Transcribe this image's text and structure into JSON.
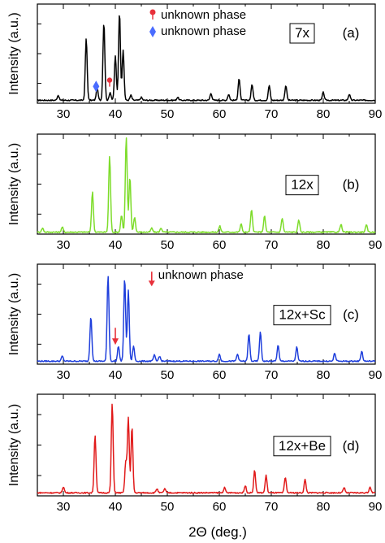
{
  "chart_data": {
    "type": "line",
    "xlabel": "2Θ (deg.)",
    "ylabel": "Intensity (a.u.)",
    "xlim": [
      25,
      90
    ],
    "xticks": [
      "30",
      "40",
      "50",
      "60",
      "70",
      "80",
      "90"
    ],
    "panels": [
      {
        "id": "a",
        "tag": "(a)",
        "sample_label": "7x",
        "color": "#000000",
        "legend": [
          {
            "marker": "circle-pin",
            "color": "#e8303a",
            "label": "unknown phase"
          },
          {
            "marker": "diamond",
            "color": "#4a6cff",
            "label": "unknown phase"
          }
        ],
        "markers": [
          {
            "type": "diamond",
            "color": "#4a6cff",
            "x": 36.3,
            "y": 0.17
          },
          {
            "type": "circle-pin",
            "color": "#e8303a",
            "x": 38.9,
            "y": 0.2
          }
        ],
        "arrow_note": null,
        "arrows": [],
        "baseline": 0.03,
        "peaks": [
          {
            "x": 29.0,
            "h": 0.05
          },
          {
            "x": 34.4,
            "h": 0.62
          },
          {
            "x": 36.5,
            "h": 0.12
          },
          {
            "x": 37.8,
            "h": 0.79
          },
          {
            "x": 39.0,
            "h": 0.08
          },
          {
            "x": 40.0,
            "h": 0.45
          },
          {
            "x": 40.8,
            "h": 0.89
          },
          {
            "x": 41.5,
            "h": 0.5
          },
          {
            "x": 43.0,
            "h": 0.05
          },
          {
            "x": 45.0,
            "h": 0.03
          },
          {
            "x": 52.0,
            "h": 0.03
          },
          {
            "x": 58.4,
            "h": 0.07
          },
          {
            "x": 61.8,
            "h": 0.06
          },
          {
            "x": 63.8,
            "h": 0.22
          },
          {
            "x": 66.3,
            "h": 0.16
          },
          {
            "x": 69.6,
            "h": 0.15
          },
          {
            "x": 72.8,
            "h": 0.15
          },
          {
            "x": 80.0,
            "h": 0.08
          },
          {
            "x": 85.0,
            "h": 0.06
          }
        ]
      },
      {
        "id": "b",
        "tag": "(b)",
        "sample_label": "12x",
        "color": "#7ddc2a",
        "legend": [],
        "markers": [],
        "arrow_note": null,
        "arrows": [],
        "baseline": 0.02,
        "peaks": [
          {
            "x": 26.0,
            "h": 0.04
          },
          {
            "x": 29.8,
            "h": 0.05
          },
          {
            "x": 35.6,
            "h": 0.4
          },
          {
            "x": 38.9,
            "h": 0.76
          },
          {
            "x": 41.2,
            "h": 0.17
          },
          {
            "x": 42.1,
            "h": 0.95
          },
          {
            "x": 42.8,
            "h": 0.55
          },
          {
            "x": 43.7,
            "h": 0.15
          },
          {
            "x": 47.0,
            "h": 0.04
          },
          {
            "x": 48.8,
            "h": 0.04
          },
          {
            "x": 60.1,
            "h": 0.06
          },
          {
            "x": 64.2,
            "h": 0.08
          },
          {
            "x": 66.2,
            "h": 0.22
          },
          {
            "x": 68.7,
            "h": 0.16
          },
          {
            "x": 72.1,
            "h": 0.14
          },
          {
            "x": 75.3,
            "h": 0.12
          },
          {
            "x": 83.4,
            "h": 0.08
          },
          {
            "x": 88.3,
            "h": 0.07
          }
        ]
      },
      {
        "id": "c",
        "tag": "(c)",
        "sample_label": "12x+Sc",
        "color": "#1f3fdc",
        "legend": [],
        "markers": [],
        "arrow_note": {
          "label": "unknown phase",
          "x": 47.0,
          "y": 0.86,
          "color": "#e8303a"
        },
        "arrows": [
          {
            "x": 40.0,
            "y": 0.25,
            "color": "#e8303a"
          }
        ],
        "baseline": 0.03,
        "peaks": [
          {
            "x": 29.8,
            "h": 0.05
          },
          {
            "x": 35.3,
            "h": 0.45
          },
          {
            "x": 38.6,
            "h": 0.86
          },
          {
            "x": 40.6,
            "h": 0.15
          },
          {
            "x": 41.8,
            "h": 0.83
          },
          {
            "x": 42.5,
            "h": 0.71
          },
          {
            "x": 43.5,
            "h": 0.15
          },
          {
            "x": 47.5,
            "h": 0.06
          },
          {
            "x": 48.5,
            "h": 0.05
          },
          {
            "x": 60.0,
            "h": 0.07
          },
          {
            "x": 63.5,
            "h": 0.07
          },
          {
            "x": 65.7,
            "h": 0.27
          },
          {
            "x": 67.9,
            "h": 0.29
          },
          {
            "x": 71.3,
            "h": 0.16
          },
          {
            "x": 74.9,
            "h": 0.14
          },
          {
            "x": 82.2,
            "h": 0.08
          },
          {
            "x": 87.4,
            "h": 0.1
          }
        ]
      },
      {
        "id": "d",
        "tag": "(d)",
        "sample_label": "12x+Be",
        "color": "#e11a1a",
        "legend": [],
        "markers": [],
        "arrow_note": null,
        "arrows": [],
        "baseline": 0.03,
        "peaks": [
          {
            "x": 30.0,
            "h": 0.06
          },
          {
            "x": 36.1,
            "h": 0.57
          },
          {
            "x": 39.4,
            "h": 0.88
          },
          {
            "x": 42.0,
            "h": 0.3
          },
          {
            "x": 42.5,
            "h": 0.74
          },
          {
            "x": 43.2,
            "h": 0.65
          },
          {
            "x": 48.0,
            "h": 0.04
          },
          {
            "x": 49.5,
            "h": 0.04
          },
          {
            "x": 61.0,
            "h": 0.05
          },
          {
            "x": 65.0,
            "h": 0.07
          },
          {
            "x": 66.8,
            "h": 0.22
          },
          {
            "x": 69.0,
            "h": 0.17
          },
          {
            "x": 72.7,
            "h": 0.15
          },
          {
            "x": 76.5,
            "h": 0.13
          },
          {
            "x": 84.0,
            "h": 0.05
          },
          {
            "x": 89.0,
            "h": 0.06
          }
        ]
      }
    ]
  }
}
